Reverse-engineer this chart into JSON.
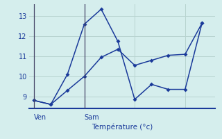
{
  "background_color": "#d5eeed",
  "grid_color": "#b8d4d0",
  "line_color": "#1a3a9a",
  "spine_color": "#1a3a9a",
  "xlabel": "Température (°c)",
  "ylim": [
    8.4,
    13.6
  ],
  "xlim": [
    -0.2,
    7.2
  ],
  "yticks": [
    9,
    10,
    11,
    12,
    13
  ],
  "ven_x": 0.0,
  "sam_x": 2.0,
  "line1_x": [
    0.0,
    0.67,
    1.33,
    2.0,
    2.67,
    3.33,
    4.0,
    4.67,
    5.33,
    6.0,
    6.67
  ],
  "line1_y": [
    8.8,
    8.6,
    10.1,
    12.6,
    13.35,
    11.75,
    8.85,
    9.6,
    9.35,
    9.35,
    12.65
  ],
  "line2_x": [
    0.0,
    0.67,
    1.33,
    2.0,
    2.67,
    3.33,
    4.0,
    4.67,
    5.33,
    6.0,
    6.67
  ],
  "line2_y": [
    8.8,
    8.6,
    9.3,
    10.0,
    10.95,
    11.35,
    10.55,
    10.8,
    11.05,
    11.1,
    12.65
  ]
}
